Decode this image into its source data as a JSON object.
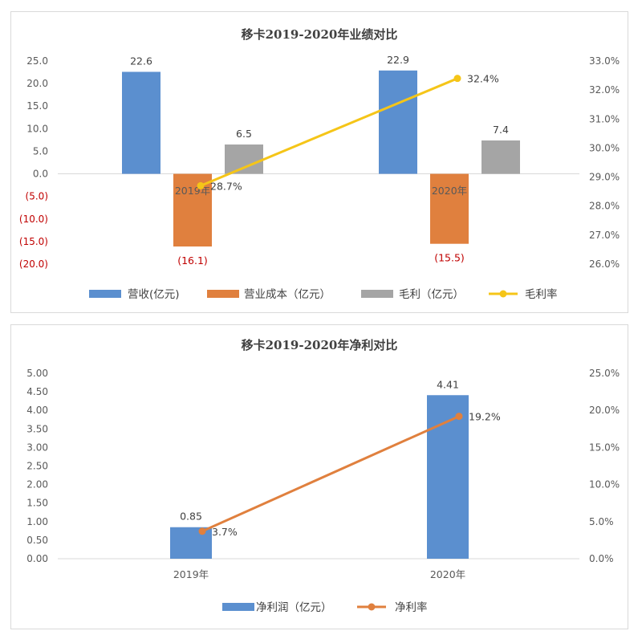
{
  "chart_data": [
    {
      "type": "bar",
      "title": "移卡2019-2020年业绩对比",
      "categories": [
        "2019年",
        "2020年"
      ],
      "series": [
        {
          "name": "营收(亿元)",
          "type": "bar",
          "axis": "left",
          "color": "#5b8fcf",
          "values": [
            22.6,
            22.9
          ],
          "labels": [
            "22.6",
            "22.9"
          ]
        },
        {
          "name": "营业成本（亿元）",
          "type": "bar",
          "axis": "left",
          "color": "#e0803e",
          "values": [
            -16.1,
            -15.5
          ],
          "labels": [
            "(16.1)",
            "(15.5)"
          ]
        },
        {
          "name": "毛利（亿元）",
          "type": "bar",
          "axis": "left",
          "color": "#a5a5a5",
          "values": [
            6.5,
            7.4
          ],
          "labels": [
            "6.5",
            "7.4"
          ]
        },
        {
          "name": "毛利率",
          "type": "line",
          "axis": "right",
          "color": "#f5c518",
          "values": [
            28.7,
            32.4
          ],
          "labels": [
            "28.7%",
            "32.4%"
          ]
        }
      ],
      "y_left": {
        "min": -20,
        "max": 25,
        "step": 5,
        "ticks": [
          "(20.0)",
          "(15.0)",
          "(10.0)",
          "(5.0)",
          "0.0",
          "5.0",
          "10.0",
          "15.0",
          "20.0",
          "25.0"
        ],
        "negative_color": "#c00000"
      },
      "y_right": {
        "min": 26,
        "max": 33,
        "step": 1,
        "ticks": [
          "26.0%",
          "27.0%",
          "28.0%",
          "29.0%",
          "30.0%",
          "31.0%",
          "32.0%",
          "33.0%"
        ]
      },
      "grid": false,
      "legend": "bottom"
    },
    {
      "type": "bar",
      "title": "移卡2019-2020年净利对比",
      "categories": [
        "2019年",
        "2020年"
      ],
      "series": [
        {
          "name": "净利润（亿元）",
          "type": "bar",
          "axis": "left",
          "color": "#5b8fcf",
          "values": [
            0.85,
            4.41
          ],
          "labels": [
            "0.85",
            "4.41"
          ]
        },
        {
          "name": "净利率",
          "type": "line",
          "axis": "right",
          "color": "#e0803e",
          "values": [
            3.7,
            19.2
          ],
          "labels": [
            "3.7%",
            "19.2%"
          ]
        }
      ],
      "y_left": {
        "min": 0,
        "max": 5,
        "step": 0.5,
        "ticks": [
          "0.00",
          "0.50",
          "1.00",
          "1.50",
          "2.00",
          "2.50",
          "3.00",
          "3.50",
          "4.00",
          "4.50",
          "5.00"
        ]
      },
      "y_right": {
        "min": 0,
        "max": 25,
        "step": 5,
        "ticks": [
          "0.0%",
          "5.0%",
          "10.0%",
          "15.0%",
          "20.0%",
          "25.0%"
        ]
      },
      "grid": false,
      "legend": "bottom"
    }
  ]
}
